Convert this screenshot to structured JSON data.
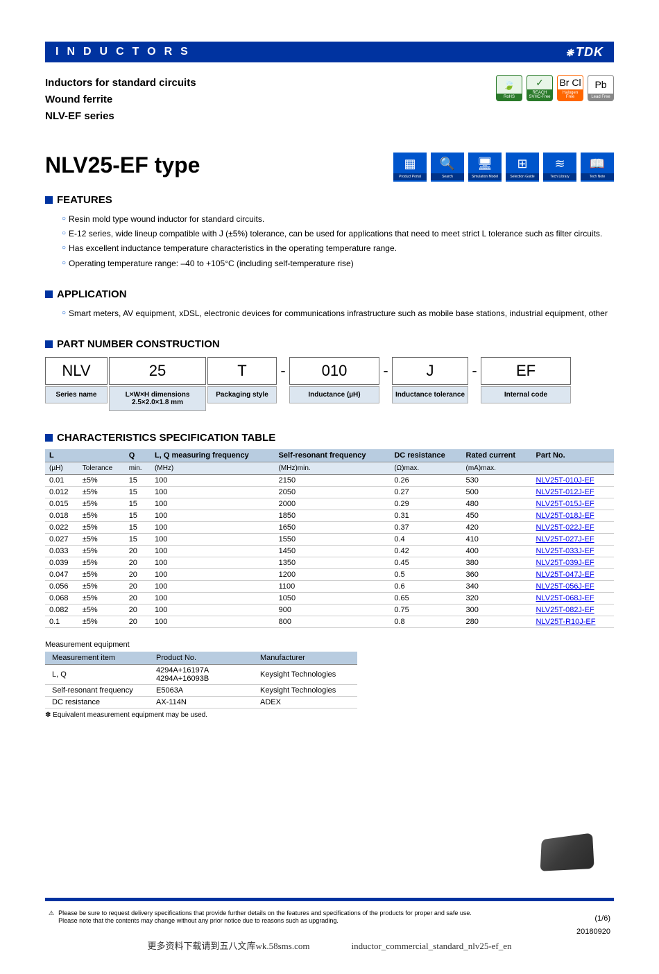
{
  "header": {
    "title": "INDUCTORS",
    "logo": "TDK"
  },
  "subtitle": {
    "line1": "Inductors for standard circuits",
    "line2": "Wound ferrite",
    "line3": "NLV-EF series"
  },
  "badges": [
    {
      "glyph": "🍃",
      "label": "RoHS",
      "cls": "green"
    },
    {
      "glyph": "✓",
      "label": "REACH SVHC-Free",
      "cls": "green"
    },
    {
      "glyph": "Br Cl",
      "label": "Halogen Free",
      "cls": "orange"
    },
    {
      "glyph": "Pb",
      "label": "Lead Free",
      "cls": "gray"
    }
  ],
  "mainTitle": "NLV25-EF type",
  "portalIcons": [
    {
      "glyph": "▦",
      "label": "Product Portal"
    },
    {
      "glyph": "🔍",
      "label": "Search"
    },
    {
      "glyph": "🖥",
      "label": "Simulation Model"
    },
    {
      "glyph": "⊞",
      "label": "Selection Guide"
    },
    {
      "glyph": "≋",
      "label": "Tech Library"
    },
    {
      "glyph": "📖",
      "label": "Tech Note"
    }
  ],
  "sections": {
    "features": {
      "title": "FEATURES",
      "items": [
        "Resin mold type wound inductor for standard circuits.",
        "E-12 series, wide lineup compatible with J (±5%) tolerance, can be used for applications that need to meet strict L tolerance such as filter circuits.",
        "Has excellent inductance temperature characteristics in the operating temperature range.",
        "Operating temperature range: –40 to +105°C (including self-temperature rise)"
      ]
    },
    "application": {
      "title": "APPLICATION",
      "items": [
        "Smart meters, AV equipment, xDSL, electronic devices for communications infrastructure such as mobile base stations, industrial equipment, other"
      ]
    },
    "partNumber": {
      "title": "PART NUMBER CONSTRUCTION",
      "codes": [
        "NLV",
        "25",
        "T",
        "010",
        "J",
        "EF"
      ],
      "labels": [
        "Series name",
        "L×W×H dimensions 2.5×2.0×1.8 mm",
        "Packaging style",
        "Inductance (µH)",
        "Inductance tolerance",
        "Internal code"
      ],
      "widths": [
        90,
        140,
        100,
        130,
        110,
        130
      ]
    },
    "specTable": {
      "title": "CHARACTERISTICS SPECIFICATION TABLE",
      "headers1": [
        "L",
        "",
        "Q",
        "L, Q measuring frequency",
        "Self-resonant frequency",
        "DC resistance",
        "Rated current",
        "Part No."
      ],
      "headers2": [
        "(µH)",
        "Tolerance",
        "min.",
        "(MHz)",
        "(MHz)min.",
        "(Ω)max.",
        "(mA)max.",
        ""
      ],
      "rows": [
        [
          "0.01",
          "±5%",
          "15",
          "100",
          "2150",
          "0.26",
          "530",
          "NLV25T-010J-EF"
        ],
        [
          "0.012",
          "±5%",
          "15",
          "100",
          "2050",
          "0.27",
          "500",
          "NLV25T-012J-EF"
        ],
        [
          "0.015",
          "±5%",
          "15",
          "100",
          "2000",
          "0.29",
          "480",
          "NLV25T-015J-EF"
        ],
        [
          "0.018",
          "±5%",
          "15",
          "100",
          "1850",
          "0.31",
          "450",
          "NLV25T-018J-EF"
        ],
        [
          "0.022",
          "±5%",
          "15",
          "100",
          "1650",
          "0.37",
          "420",
          "NLV25T-022J-EF"
        ],
        [
          "0.027",
          "±5%",
          "15",
          "100",
          "1550",
          "0.4",
          "410",
          "NLV25T-027J-EF"
        ],
        [
          "0.033",
          "±5%",
          "20",
          "100",
          "1450",
          "0.42",
          "400",
          "NLV25T-033J-EF"
        ],
        [
          "0.039",
          "±5%",
          "20",
          "100",
          "1350",
          "0.45",
          "380",
          "NLV25T-039J-EF"
        ],
        [
          "0.047",
          "±5%",
          "20",
          "100",
          "1200",
          "0.5",
          "360",
          "NLV25T-047J-EF"
        ],
        [
          "0.056",
          "±5%",
          "20",
          "100",
          "1100",
          "0.6",
          "340",
          "NLV25T-056J-EF"
        ],
        [
          "0.068",
          "±5%",
          "20",
          "100",
          "1050",
          "0.65",
          "320",
          "NLV25T-068J-EF"
        ],
        [
          "0.082",
          "±5%",
          "20",
          "100",
          "900",
          "0.75",
          "300",
          "NLV25T-082J-EF"
        ],
        [
          "0.1",
          "±5%",
          "20",
          "100",
          "800",
          "0.8",
          "280",
          "NLV25T-R10J-EF"
        ]
      ]
    },
    "measurement": {
      "title": "Measurement equipment",
      "headers": [
        "Measurement item",
        "Product No.",
        "Manufacturer"
      ],
      "rows": [
        [
          "L, Q",
          "4294A+16197A\n4294A+16093B",
          "Keysight Technologies"
        ],
        [
          "Self-resonant frequency",
          "E5063A",
          "Keysight Technologies"
        ],
        [
          "DC resistance",
          "AX-114N",
          "ADEX"
        ]
      ],
      "note": "✽ Equivalent measurement equipment may be used."
    }
  },
  "footer": {
    "note": "Please be sure to request delivery specifications that provide further details on the features and specifications of the products for proper and safe use.\nPlease note that the contents may change without any prior notice due to reasons such as upgrading.",
    "page": "(1/6)",
    "date": "20180920",
    "watermark": "更多资料下载请到五八文库wk.58sms.com",
    "filename": "inductor_commercial_standard_nlv25-ef_en"
  }
}
